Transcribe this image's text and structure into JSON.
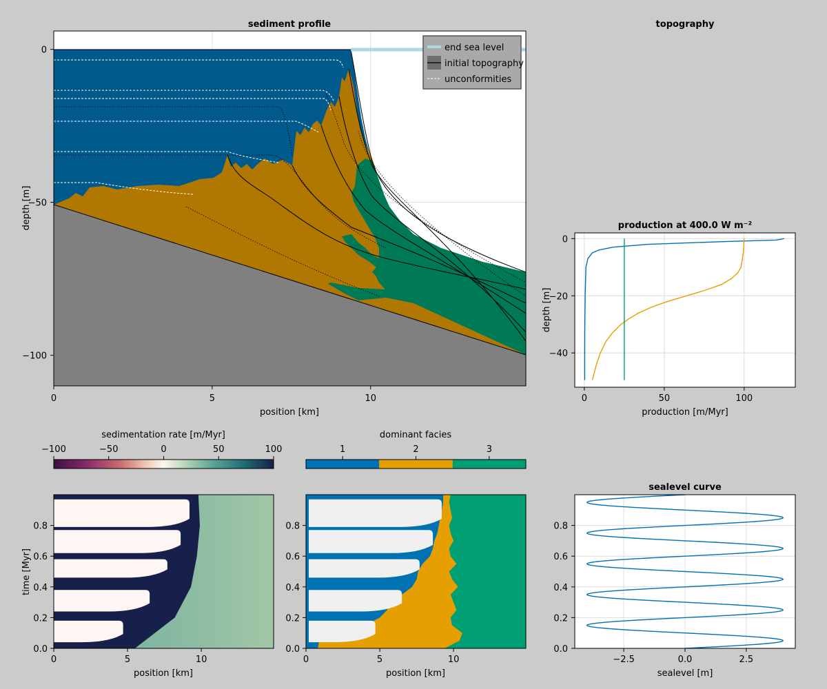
{
  "figure": {
    "background": "#cbcbcb",
    "colors": {
      "facies1": "#0072b2",
      "facies2": "#e69f00",
      "facies3": "#009e73",
      "facies1_dark": "#005a8c",
      "facies2_dark": "#b07800",
      "facies3_dark": "#007a55",
      "basement": "#808080",
      "sea": "#add8e6",
      "empty": "#f0f0f0"
    }
  },
  "chart_data": [
    {
      "id": "sediment-profile",
      "type": "area",
      "title": "sediment profile",
      "xlabel": "position [km]",
      "ylabel": "depth [m]",
      "xlim": [
        0,
        14.9
      ],
      "ylim": [
        -110,
        6
      ],
      "xticks": [
        0,
        5,
        10
      ],
      "yticks": [
        0,
        -50,
        -100
      ],
      "ytick_labels": [
        "0",
        "−50",
        "−100"
      ],
      "legend": {
        "position": "top-right",
        "entries": [
          {
            "label": "end sea level",
            "style": "sea-line"
          },
          {
            "label": "initial topography",
            "style": "solid-line"
          },
          {
            "label": "unconformities",
            "style": "dashed-line"
          }
        ]
      },
      "initial_topography": {
        "x": [
          0,
          14.9
        ],
        "y": [
          -50,
          -100
        ]
      },
      "sea_level": 0
    },
    {
      "id": "topography",
      "type": "empty",
      "title": "topography"
    },
    {
      "id": "production",
      "type": "line",
      "title": "production at 400.0 W m⁻²",
      "xlabel": "production [m/Myr]",
      "ylabel": "depth [m]",
      "xlim": [
        -6,
        132
      ],
      "ylim": [
        -52,
        2
      ],
      "xticks": [
        0,
        50,
        100
      ],
      "yticks": [
        0,
        -20,
        -40
      ],
      "ytick_labels": [
        "0",
        "−20",
        "−40"
      ],
      "series": [
        {
          "facies": 1,
          "depth": [
            0,
            -0.5,
            -1,
            -2,
            -3,
            -4,
            -5,
            -7,
            -10,
            -20,
            -30,
            -40,
            -49.5
          ],
          "production": [
            125,
            120,
            90,
            40,
            18,
            9,
            5,
            2.2,
            1,
            0.5,
            0.3,
            0.2,
            0.2
          ]
        },
        {
          "facies": 2,
          "depth": [
            0,
            -5,
            -10,
            -12,
            -14,
            -16,
            -18,
            -20,
            -22,
            -24,
            -26,
            -28,
            -30,
            -33,
            -36,
            -40,
            -44,
            -49.5
          ],
          "production": [
            100,
            99.5,
            98,
            96,
            92,
            86,
            76,
            64,
            52,
            42,
            34,
            28,
            23,
            17.5,
            13.5,
            10,
            7.6,
            5
          ]
        },
        {
          "facies": 3,
          "depth": [
            0,
            -49.5
          ],
          "production": [
            25,
            25
          ]
        }
      ]
    },
    {
      "id": "sedimentation-rate",
      "type": "heatmap",
      "colorbar_label": "sedimentation rate [m/Myr]",
      "colorbar_ticks": [
        -100,
        -50,
        0,
        50,
        100
      ],
      "colorbar_tick_labels": [
        "−100",
        "−50",
        "0",
        "50",
        "100"
      ],
      "xlabel": "position [km]",
      "ylabel": "time [Myr]",
      "xlim": [
        0,
        14.9
      ],
      "ylim": [
        0,
        1
      ],
      "xticks": [
        0,
        5,
        10
      ],
      "yticks": [
        0,
        0.2,
        0.4,
        0.6,
        0.8
      ],
      "ytick_labels": [
        "0.0",
        "0.2",
        "0.4",
        "0.6",
        "0.8"
      ],
      "empty_bands": [
        {
          "t0": 0.04,
          "t1": 0.18,
          "x_end": 4.7
        },
        {
          "t0": 0.24,
          "t1": 0.38,
          "x_end": 6.5
        },
        {
          "t0": 0.46,
          "t1": 0.58,
          "x_end": 7.7
        },
        {
          "t0": 0.62,
          "t1": 0.77,
          "x_end": 8.6
        },
        {
          "t0": 0.79,
          "t1": 0.97,
          "x_end": 9.2
        }
      ],
      "front": {
        "t": [
          0,
          0.2,
          0.4,
          0.6,
          0.8,
          1
        ],
        "x": [
          5.5,
          8.2,
          9.3,
          9.7,
          9.9,
          9.8
        ]
      }
    },
    {
      "id": "dominant-facies",
      "type": "heatmap",
      "colorbar_label": "dominant facies",
      "colorbar_ticks": [
        1,
        2,
        3
      ],
      "colorbar_tick_labels": [
        "1",
        "2",
        "3"
      ],
      "xlabel": "position [km]",
      "xlim": [
        0,
        14.9
      ],
      "ylim": [
        0,
        1
      ],
      "xticks": [
        0,
        5,
        10
      ],
      "yticks": [
        0,
        0.2,
        0.4,
        0.6,
        0.8
      ],
      "ytick_labels": [
        "0.0",
        "0.2",
        "0.4",
        "0.6",
        "0.8"
      ],
      "facies1_to_2": {
        "t": [
          0,
          0.05,
          0.1,
          0.15,
          0.2,
          0.25,
          0.3,
          0.35,
          0.4,
          0.45,
          0.5,
          0.55,
          0.6,
          0.65,
          0.7,
          0.75,
          0.8,
          0.85,
          0.9,
          0.95,
          1
        ],
        "x": [
          0.8,
          0.9,
          3.0,
          4.0,
          5.0,
          5.5,
          5.6,
          6.5,
          7.2,
          7.5,
          7.6,
          7.9,
          8.4,
          8.6,
          8.7,
          8.9,
          9.0,
          9.1,
          9.2,
          9.3,
          9.3
        ]
      },
      "facies2_to_3": {
        "t": [
          0,
          0.05,
          0.1,
          0.15,
          0.2,
          0.25,
          0.3,
          0.35,
          0.4,
          0.45,
          0.5,
          0.55,
          0.6,
          0.65,
          0.7,
          0.75,
          0.8,
          0.85,
          0.9,
          0.95,
          1
        ],
        "x": [
          9.4,
          10.4,
          10.6,
          9.9,
          9.8,
          10.2,
          10.0,
          9.8,
          10.3,
          9.9,
          9.7,
          10.2,
          9.8,
          9.7,
          10.0,
          9.8,
          9.7,
          9.9,
          9.8,
          9.7,
          9.8
        ]
      }
    },
    {
      "id": "sealevel-curve",
      "type": "line",
      "title": "sealevel curve",
      "xlabel": "sealevel [m]",
      "xlim": [
        -4.5,
        4.5
      ],
      "ylim": [
        0,
        1
      ],
      "xticks": [
        -2.5,
        0,
        2.5
      ],
      "xtick_labels": [
        "−2.5",
        "0.0",
        "2.5"
      ],
      "yticks": [
        0,
        0.2,
        0.4,
        0.6,
        0.8
      ],
      "ytick_labels": [
        "0.0",
        "0.2",
        "0.4",
        "0.6",
        "0.8"
      ],
      "amplitude": 4,
      "period": 0.2
    }
  ]
}
